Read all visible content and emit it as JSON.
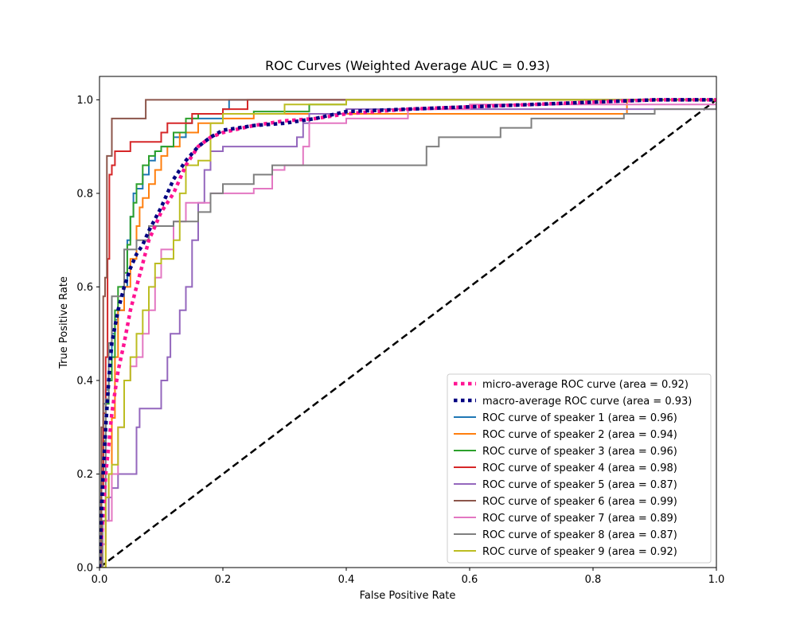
{
  "chart_data": {
    "type": "line",
    "title": "ROC Curves (Weighted Average AUC = 0.93)",
    "xlabel": "False Positive Rate",
    "ylabel": "True Positive Rate",
    "xlim": [
      0.0,
      1.0
    ],
    "ylim": [
      0.0,
      1.05
    ],
    "x_ticks": [
      "0.0",
      "0.2",
      "0.4",
      "0.6",
      "0.8",
      "1.0"
    ],
    "y_ticks": [
      "0.0",
      "0.2",
      "0.4",
      "0.6",
      "0.8",
      "1.0"
    ],
    "grid": false,
    "legend_position": "bottom-right",
    "diagonal": {
      "x": [
        0,
        1
      ],
      "y": [
        0,
        1
      ],
      "color": "#000000",
      "style": "dashed"
    },
    "series": [
      {
        "name": "micro-average ROC curve (area = 0.92)",
        "color": "#ff1493",
        "style": "dotted",
        "x": [
          0,
          0.005,
          0.01,
          0.015,
          0.02,
          0.03,
          0.04,
          0.05,
          0.06,
          0.07,
          0.08,
          0.09,
          0.1,
          0.12,
          0.14,
          0.16,
          0.18,
          0.2,
          0.25,
          0.3,
          0.35,
          0.4,
          0.5,
          0.6,
          0.7,
          0.8,
          0.9,
          1.0
        ],
        "y": [
          0,
          0.1,
          0.2,
          0.26,
          0.33,
          0.42,
          0.48,
          0.55,
          0.6,
          0.65,
          0.7,
          0.73,
          0.76,
          0.8,
          0.86,
          0.9,
          0.92,
          0.93,
          0.945,
          0.955,
          0.96,
          0.97,
          0.98,
          0.985,
          0.99,
          0.995,
          1.0,
          1.0
        ]
      },
      {
        "name": "macro-average ROC curve (area = 0.93)",
        "color": "#000080",
        "style": "dotted",
        "x": [
          0,
          0.005,
          0.01,
          0.015,
          0.02,
          0.03,
          0.04,
          0.05,
          0.06,
          0.07,
          0.08,
          0.1,
          0.12,
          0.14,
          0.16,
          0.18,
          0.2,
          0.25,
          0.3,
          0.35,
          0.4,
          0.5,
          0.6,
          0.7,
          0.8,
          0.9,
          1.0
        ],
        "y": [
          0,
          0.18,
          0.3,
          0.4,
          0.48,
          0.55,
          0.6,
          0.64,
          0.67,
          0.69,
          0.72,
          0.77,
          0.83,
          0.87,
          0.9,
          0.92,
          0.935,
          0.945,
          0.95,
          0.96,
          0.975,
          0.98,
          0.985,
          0.99,
          0.995,
          1.0,
          1.0
        ]
      },
      {
        "name": "ROC curve of speaker 1 (area = 0.96)",
        "color": "#1f77b4",
        "style": "solid",
        "x": [
          0,
          0.003,
          0.006,
          0.01,
          0.015,
          0.02,
          0.025,
          0.03,
          0.04,
          0.045,
          0.05,
          0.055,
          0.06,
          0.07,
          0.08,
          0.09,
          0.1,
          0.12,
          0.14,
          0.15,
          0.2,
          0.21,
          1.0
        ],
        "y": [
          0,
          0.2,
          0.35,
          0.38,
          0.45,
          0.5,
          0.53,
          0.55,
          0.6,
          0.7,
          0.75,
          0.8,
          0.81,
          0.84,
          0.87,
          0.89,
          0.9,
          0.92,
          0.95,
          0.96,
          0.98,
          1.0,
          1.0
        ]
      },
      {
        "name": "ROC curve of speaker 2 (area = 0.94)",
        "color": "#ff7f0e",
        "style": "solid",
        "x": [
          0,
          0.01,
          0.015,
          0.02,
          0.025,
          0.03,
          0.04,
          0.05,
          0.06,
          0.065,
          0.07,
          0.08,
          0.09,
          0.1,
          0.11,
          0.13,
          0.16,
          0.2,
          0.25,
          0.3,
          0.4,
          0.5,
          0.7,
          0.8,
          0.855,
          1.0
        ],
        "y": [
          0,
          0.1,
          0.2,
          0.32,
          0.45,
          0.55,
          0.6,
          0.66,
          0.73,
          0.77,
          0.79,
          0.82,
          0.85,
          0.88,
          0.9,
          0.93,
          0.95,
          0.96,
          0.97,
          0.97,
          0.97,
          0.97,
          0.97,
          0.97,
          1.0,
          1.0
        ]
      },
      {
        "name": "ROC curve of speaker 3 (area = 0.96)",
        "color": "#2ca02c",
        "style": "solid",
        "x": [
          0,
          0.003,
          0.006,
          0.01,
          0.015,
          0.02,
          0.025,
          0.03,
          0.04,
          0.045,
          0.05,
          0.055,
          0.06,
          0.07,
          0.08,
          0.09,
          0.1,
          0.12,
          0.14,
          0.16,
          0.2,
          0.25,
          0.3,
          0.34,
          0.4,
          1.0
        ],
        "y": [
          0,
          0.2,
          0.27,
          0.35,
          0.4,
          0.45,
          0.55,
          0.6,
          0.63,
          0.69,
          0.75,
          0.78,
          0.82,
          0.86,
          0.88,
          0.89,
          0.9,
          0.93,
          0.96,
          0.97,
          0.97,
          0.975,
          0.975,
          0.99,
          1.0,
          1.0
        ]
      },
      {
        "name": "ROC curve of speaker 4 (area = 0.98)",
        "color": "#d62728",
        "style": "solid",
        "x": [
          0,
          0.003,
          0.006,
          0.01,
          0.013,
          0.016,
          0.02,
          0.025,
          0.04,
          0.05,
          0.07,
          0.1,
          0.11,
          0.12,
          0.15,
          0.2,
          0.24,
          1.0
        ],
        "y": [
          0,
          0.17,
          0.33,
          0.45,
          0.66,
          0.84,
          0.86,
          0.89,
          0.89,
          0.91,
          0.91,
          0.93,
          0.95,
          0.95,
          0.97,
          0.98,
          1.0,
          1.0
        ]
      },
      {
        "name": "ROC curve of speaker 5 (area = 0.87)",
        "color": "#9467bd",
        "style": "solid",
        "x": [
          0,
          0.005,
          0.01,
          0.015,
          0.02,
          0.03,
          0.04,
          0.06,
          0.065,
          0.07,
          0.08,
          0.1,
          0.11,
          0.115,
          0.13,
          0.14,
          0.15,
          0.16,
          0.17,
          0.18,
          0.2,
          0.25,
          0.3,
          0.32,
          0.33,
          0.34,
          0.4,
          1.0
        ],
        "y": [
          0,
          0.05,
          0.1,
          0.15,
          0.17,
          0.2,
          0.2,
          0.3,
          0.34,
          0.34,
          0.34,
          0.4,
          0.45,
          0.5,
          0.55,
          0.6,
          0.7,
          0.78,
          0.85,
          0.89,
          0.9,
          0.9,
          0.9,
          0.92,
          0.95,
          0.97,
          0.98,
          1.0
        ]
      },
      {
        "name": "ROC curve of speaker 6 (area = 0.99)",
        "color": "#8c564b",
        "style": "solid",
        "x": [
          0,
          0.003,
          0.006,
          0.009,
          0.012,
          0.015,
          0.02,
          0.04,
          0.07,
          0.075,
          1.0
        ],
        "y": [
          0,
          0.3,
          0.58,
          0.62,
          0.88,
          0.88,
          0.96,
          0.96,
          0.96,
          1.0,
          1.0
        ]
      },
      {
        "name": "ROC curve of speaker 7 (area = 0.89)",
        "color": "#e377c2",
        "style": "solid",
        "x": [
          0,
          0.005,
          0.01,
          0.02,
          0.03,
          0.04,
          0.05,
          0.06,
          0.07,
          0.08,
          0.09,
          0.1,
          0.12,
          0.14,
          0.18,
          0.2,
          0.25,
          0.28,
          0.3,
          0.33,
          0.34,
          0.4,
          0.5,
          0.6,
          0.8,
          1.0
        ],
        "y": [
          0,
          0.05,
          0.1,
          0.2,
          0.3,
          0.4,
          0.43,
          0.45,
          0.5,
          0.55,
          0.62,
          0.68,
          0.74,
          0.78,
          0.8,
          0.8,
          0.81,
          0.85,
          0.86,
          0.9,
          0.95,
          0.96,
          0.98,
          0.99,
          0.99,
          1.0
        ]
      },
      {
        "name": "ROC curve of speaker 8 (area = 0.87)",
        "color": "#7f7f7f",
        "style": "solid",
        "x": [
          0,
          0.005,
          0.01,
          0.015,
          0.02,
          0.04,
          0.06,
          0.08,
          0.12,
          0.16,
          0.18,
          0.2,
          0.25,
          0.28,
          0.4,
          0.52,
          0.53,
          0.55,
          0.6,
          0.65,
          0.7,
          0.8,
          0.85,
          0.9,
          1.0
        ],
        "y": [
          0,
          0.1,
          0.36,
          0.48,
          0.58,
          0.68,
          0.7,
          0.73,
          0.74,
          0.76,
          0.8,
          0.82,
          0.84,
          0.86,
          0.86,
          0.86,
          0.9,
          0.92,
          0.92,
          0.94,
          0.96,
          0.96,
          0.97,
          0.98,
          1.0
        ]
      },
      {
        "name": "ROC curve of speaker 9 (area = 0.92)",
        "color": "#bcbd22",
        "style": "solid",
        "x": [
          0,
          0.01,
          0.015,
          0.02,
          0.03,
          0.04,
          0.05,
          0.06,
          0.07,
          0.08,
          0.09,
          0.1,
          0.12,
          0.13,
          0.14,
          0.16,
          0.18,
          0.2,
          0.3,
          0.4,
          1.0
        ],
        "y": [
          0,
          0.15,
          0.2,
          0.22,
          0.3,
          0.4,
          0.45,
          0.5,
          0.55,
          0.6,
          0.65,
          0.66,
          0.7,
          0.8,
          0.86,
          0.87,
          0.95,
          0.97,
          0.99,
          1.0,
          1.0
        ]
      }
    ]
  }
}
